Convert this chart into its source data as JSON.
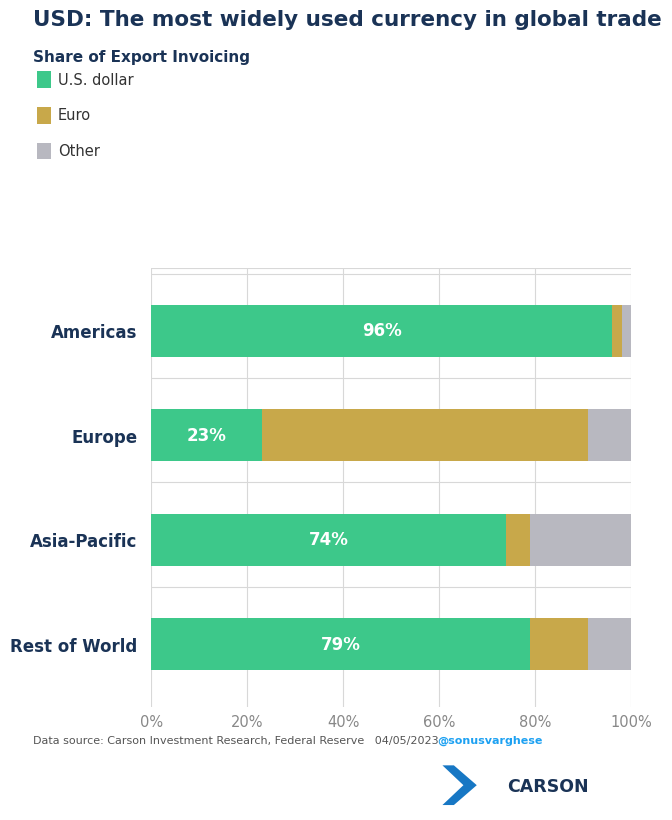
{
  "title": "USD: The most widely used currency in global trade",
  "subtitle": "Share of Export Invoicing",
  "categories": [
    "Americas",
    "Europe",
    "Asia-Pacific",
    "Rest of World"
  ],
  "usd": [
    96,
    23,
    74,
    79
  ],
  "euro": [
    2,
    68,
    5,
    12
  ],
  "other": [
    2,
    9,
    21,
    9
  ],
  "usd_color": "#3DC88A",
  "euro_color": "#C8A84A",
  "other_color": "#B8B8C0",
  "usd_label": "U.S. dollar",
  "euro_label": "Euro",
  "other_label": "Other",
  "title_color": "#1A3356",
  "subtitle_color": "#1A3356",
  "footnote": "Data source: Carson Investment Research, Federal Reserve   04/05/2023",
  "twitter": "@sonusvarghese",
  "bg_color": "#FFFFFF",
  "grid_color": "#D8D8D8",
  "bar_label_color": "#FFFFFF",
  "xticks": [
    0,
    20,
    40,
    60,
    80,
    100
  ],
  "xtick_labels": [
    "0%",
    "20%",
    "40%",
    "60%",
    "80%",
    "100%"
  ],
  "logo_color": "#1777C4",
  "twitter_color": "#1DA1F2",
  "footnote_color": "#555555",
  "ylabel_color": "#333333",
  "xtick_color": "#888888"
}
